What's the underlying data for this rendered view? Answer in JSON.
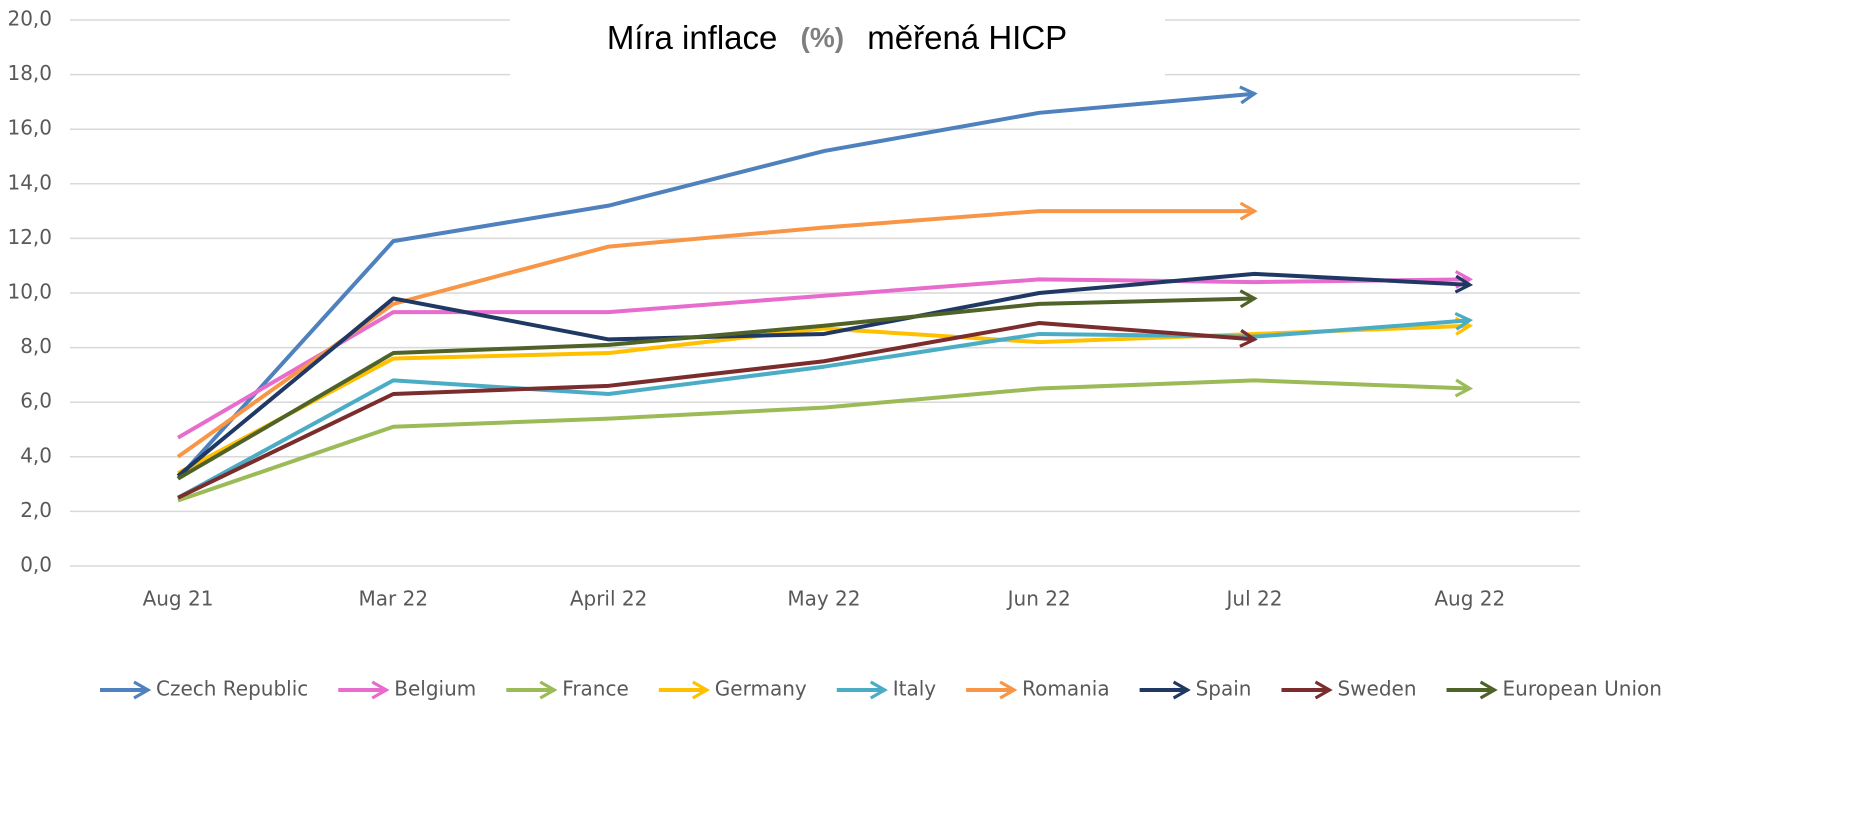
{
  "chart_data": {
    "type": "line",
    "title": [
      "Míra inflace",
      "(%)",
      "měřená HICP"
    ],
    "categories": [
      "Aug 21",
      "Mar 22",
      "April 22",
      "May 22",
      "Jun 22",
      "Jul 22",
      "Aug 22"
    ],
    "ylim": [
      0,
      20
    ],
    "yticks": [
      {
        "value": 0,
        "label": "0,0"
      },
      {
        "value": 2,
        "label": "2,0"
      },
      {
        "value": 4,
        "label": "4,0"
      },
      {
        "value": 6,
        "label": "6,0"
      },
      {
        "value": 8,
        "label": "8,0"
      },
      {
        "value": 10,
        "label": "10,0"
      },
      {
        "value": 12,
        "label": "12,0"
      },
      {
        "value": 14,
        "label": "14,0"
      },
      {
        "value": 16,
        "label": "16,0"
      },
      {
        "value": 18,
        "label": "18,0"
      },
      {
        "value": 20,
        "label": "20,0"
      }
    ],
    "grid": true,
    "legend": "bottom",
    "series": [
      {
        "name": "Czech Republic",
        "color": "#4e81bd",
        "values": [
          3.2,
          11.9,
          13.2,
          15.2,
          16.6,
          17.3,
          null
        ]
      },
      {
        "name": "Belgium",
        "color": "#e86bce",
        "values": [
          4.7,
          9.3,
          9.3,
          9.9,
          10.5,
          10.4,
          10.5
        ]
      },
      {
        "name": "France",
        "color": "#9bbb59",
        "values": [
          2.4,
          5.1,
          5.4,
          5.8,
          6.5,
          6.8,
          6.5
        ]
      },
      {
        "name": "Germany",
        "color": "#ffc000",
        "values": [
          3.4,
          7.6,
          7.8,
          8.7,
          8.2,
          8.5,
          8.8
        ]
      },
      {
        "name": "Italy",
        "color": "#4bacc6",
        "values": [
          2.5,
          6.8,
          6.3,
          7.3,
          8.5,
          8.4,
          9.0
        ]
      },
      {
        "name": "Romania",
        "color": "#f79646",
        "values": [
          4.0,
          9.6,
          11.7,
          12.4,
          13.0,
          13.0,
          null
        ]
      },
      {
        "name": "Spain",
        "color": "#1f3864",
        "values": [
          3.3,
          9.8,
          8.3,
          8.5,
          10.0,
          10.7,
          10.3
        ]
      },
      {
        "name": "Sweden",
        "color": "#7b2c2c",
        "values": [
          2.5,
          6.3,
          6.6,
          7.5,
          8.9,
          8.3,
          null
        ]
      },
      {
        "name": "European Union",
        "color": "#4f6228",
        "values": [
          3.2,
          7.8,
          8.1,
          8.8,
          9.6,
          9.8,
          null
        ]
      }
    ]
  }
}
